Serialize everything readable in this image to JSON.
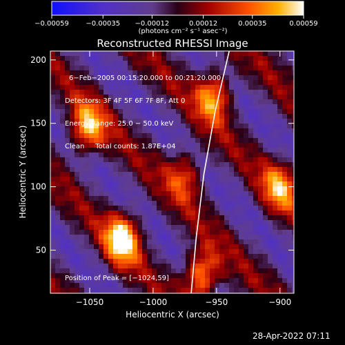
{
  "chart_data": {
    "type": "heatmap",
    "title": "Reconstructed RHESSI Image",
    "xlabel": "Heliocentric X (arcsec)",
    "ylabel": "Heliocentric Y (arcsec)",
    "xlim": [
      -1081,
      -889
    ],
    "ylim": [
      16,
      207
    ],
    "x_ticks": [
      -1050,
      -1000,
      -950,
      -900
    ],
    "x_tick_labels": [
      "−1050",
      "−1000",
      "−950",
      "−900"
    ],
    "y_ticks": [
      50,
      100,
      150,
      200
    ],
    "y_tick_labels": [
      "50",
      "100",
      "150",
      "200"
    ],
    "colorbar": {
      "min": -0.00059,
      "max": 0.00059,
      "tick_values": [
        -0.00059,
        -0.00035,
        -0.00012,
        0.00012,
        0.00035,
        0.00059
      ],
      "tick_labels": [
        "−0.00059",
        "−0.00035",
        "−0.00012",
        "0.00012",
        "0.00035",
        "0.00059"
      ],
      "units": "(photons cm⁻² s⁻¹ asec⁻²)"
    },
    "info_lines": [
      "6−Feb−2005 00:15:20.000 to 00:21:20.000",
      "Detectors: 3F 4F 5F 6F 7F 8F, Att 0",
      "Energy Range: 25.0 − 50.0 keV",
      "Clean     Total counts: 1.87E+04"
    ],
    "peak_label": "Position of Peak = [−1024,59]",
    "peak": [
      -1024,
      59
    ],
    "sources": [
      {
        "x": -1024,
        "y": 59,
        "value": 1.0
      },
      {
        "x": -1052,
        "y": 146,
        "value": 0.85
      },
      {
        "x": -962,
        "y": 30,
        "value": 0.9
      },
      {
        "x": -952,
        "y": 172,
        "value": 0.8
      },
      {
        "x": -900,
        "y": 100,
        "value": 0.7
      },
      {
        "x": -975,
        "y": 110,
        "value": 0.55
      }
    ],
    "limb_curve": [
      [
        -970,
        16
      ],
      [
        -966,
        60
      ],
      [
        -960,
        110
      ],
      [
        -951,
        160
      ],
      [
        -940,
        207
      ]
    ]
  },
  "timestamp": "28-Apr-2022 07:11"
}
